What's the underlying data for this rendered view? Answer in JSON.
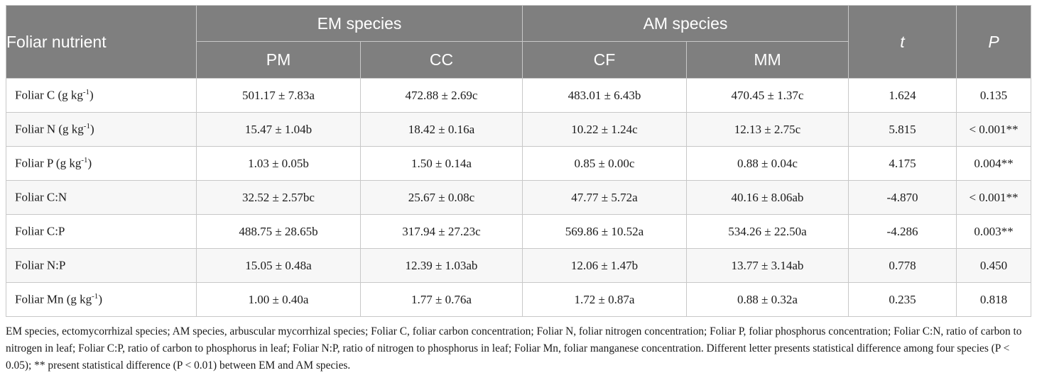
{
  "header": {
    "first_col": "Foliar nutrient",
    "groups": [
      "EM species",
      "AM species"
    ],
    "species": [
      "PM",
      "CC",
      "CF",
      "MM"
    ],
    "t": "t",
    "p": "P"
  },
  "rows": [
    {
      "base": "Foliar C (g kg",
      "sup": "-1",
      "tail": ")",
      "pm": "501.17 ± 7.83a",
      "cc": "472.88 ± 2.69c",
      "cf": "483.01 ± 6.43b",
      "mm": "470.45 ± 1.37c",
      "t": "1.624",
      "p": "0.135"
    },
    {
      "base": "Foliar N (g kg",
      "sup": "-1",
      "tail": ")",
      "pm": "15.47 ± 1.04b",
      "cc": "18.42 ± 0.16a",
      "cf": "10.22 ± 1.24c",
      "mm": "12.13 ± 2.75c",
      "t": "5.815",
      "p": "< 0.001**"
    },
    {
      "base": "Foliar P (g kg",
      "sup": "-1",
      "tail": ")",
      "pm": "1.03 ± 0.05b",
      "cc": "1.50 ± 0.14a",
      "cf": "0.85 ± 0.00c",
      "mm": "0.88 ± 0.04c",
      "t": "4.175",
      "p": "0.004**"
    },
    {
      "base": "Foliar C:N",
      "sup": "",
      "tail": "",
      "pm": "32.52 ± 2.57bc",
      "cc": "25.67 ± 0.08c",
      "cf": "47.77 ± 5.72a",
      "mm": "40.16 ± 8.06ab",
      "t": "-4.870",
      "p": "< 0.001**"
    },
    {
      "base": "Foliar C:P",
      "sup": "",
      "tail": "",
      "pm": "488.75 ± 28.65b",
      "cc": "317.94 ± 27.23c",
      "cf": "569.86 ± 10.52a",
      "mm": "534.26 ± 22.50a",
      "t": "-4.286",
      "p": "0.003**"
    },
    {
      "base": "Foliar N:P",
      "sup": "",
      "tail": "",
      "pm": "15.05 ± 0.48a",
      "cc": "12.39 ± 1.03ab",
      "cf": "12.06 ± 1.47b",
      "mm": "13.77 ± 3.14ab",
      "t": "0.778",
      "p": "0.450"
    },
    {
      "base": "Foliar Mn (g kg",
      "sup": "-1",
      "tail": ")",
      "pm": "1.00 ± 0.40a",
      "cc": "1.77 ± 0.76a",
      "cf": "1.72 ± 0.87a",
      "mm": "0.88 ± 0.32a",
      "t": "0.235",
      "p": "0.818"
    }
  ],
  "footnote": "EM species, ectomycorrhizal species; AM species, arbuscular mycorrhizal species; Foliar C, foliar carbon concentration; Foliar N, foliar nitrogen concentration; Foliar P, foliar phosphorus concentration; Foliar C:N, ratio of carbon to nitrogen in leaf; Foliar C:P, ratio of carbon to phosphorus in leaf; Foliar N:P, ratio of nitrogen to phosphorus in leaf; Foliar Mn, foliar manganese concentration. Different letter presents statistical difference among four species (P < 0.05); ** present statistical difference (P < 0.01) between EM and AM species.",
  "colors": {
    "header_bg": "#7f7f7f",
    "header_text": "#ffffff",
    "border": "#c8c8c8"
  }
}
